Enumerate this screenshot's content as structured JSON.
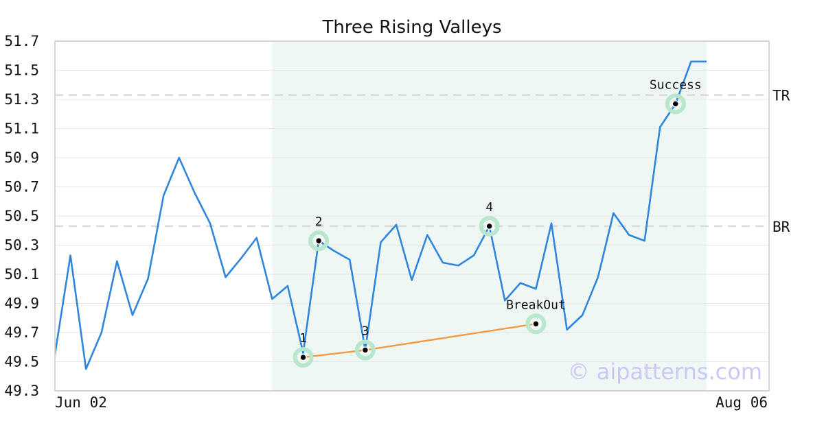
{
  "chart_data": {
    "type": "line",
    "title": "Three Rising Valleys",
    "xlabel": "",
    "ylabel": "",
    "ylim": [
      49.3,
      51.7
    ],
    "yticks": [
      "49.3",
      "49.5",
      "49.7",
      "49.9",
      "50.1",
      "50.3",
      "50.5",
      "50.7",
      "50.9",
      "51.1",
      "51.3",
      "51.5",
      "51.7"
    ],
    "xtick_labels": [
      "Jun 02",
      "Aug 06"
    ],
    "grid": true,
    "series": [
      {
        "color": "#2f86dd",
        "x": [
          0,
          1,
          2,
          3,
          4,
          5,
          6,
          7,
          8,
          9,
          10,
          11,
          12,
          13,
          14,
          15,
          16,
          17,
          18,
          19,
          20,
          21,
          22,
          23,
          24,
          25,
          26,
          27,
          28,
          29,
          30,
          31,
          32,
          33,
          34,
          35,
          36,
          37,
          38,
          39,
          40,
          41,
          42
        ],
        "values": [
          49.55,
          50.23,
          49.45,
          49.7,
          50.19,
          49.82,
          50.07,
          50.64,
          50.9,
          50.66,
          50.45,
          50.08,
          50.21,
          50.35,
          49.93,
          50.02,
          49.56,
          50.33,
          50.26,
          50.2,
          49.58,
          50.32,
          50.44,
          50.06,
          50.37,
          50.18,
          50.16,
          50.23,
          50.43,
          49.92,
          50.04,
          50.0,
          50.45,
          49.72,
          49.82,
          50.08,
          50.52,
          50.37,
          50.33,
          51.11,
          51.27,
          51.56,
          51.56
        ]
      }
    ],
    "highlight_region": {
      "x_start": 14,
      "x_end": 42,
      "color": "#eef7f3"
    },
    "reference_lines": [
      {
        "label": "TR",
        "value": 51.33
      },
      {
        "label": "BR",
        "value": 50.43
      }
    ],
    "trendline": {
      "color": "#f59a40",
      "points": [
        {
          "x": 16,
          "y": 49.53
        },
        {
          "x": 20,
          "y": 49.58
        },
        {
          "x": 31,
          "y": 49.76
        }
      ]
    },
    "markers": [
      {
        "label": "1",
        "x": 16,
        "y": 49.53
      },
      {
        "label": "2",
        "x": 17,
        "y": 50.33
      },
      {
        "label": "3",
        "x": 20,
        "y": 49.58
      },
      {
        "label": "4",
        "x": 28,
        "y": 50.43
      },
      {
        "label": "BreakOut",
        "x": 31,
        "y": 49.76
      },
      {
        "label": "Success",
        "x": 40,
        "y": 51.27
      }
    ],
    "watermark": "© aipatterns.com"
  }
}
